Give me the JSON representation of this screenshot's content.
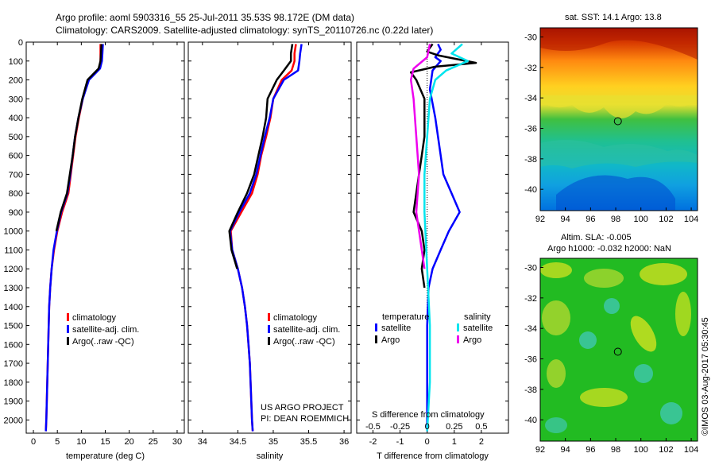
{
  "header": {
    "line1": "Argo profile: aoml 5903316_55 25-Jul-2011 35.53S 98.172E (DM data)",
    "line2": "Climatology: CARS2009. Satellite-adjusted climatology: synTS_20110726.nc (0.22d later)"
  },
  "colors": {
    "climatology": "#ff0000",
    "satellite": "#0000ff",
    "argo": "#000000",
    "sal_sat": "#00e5ee",
    "sal_argo": "#ee00ee"
  },
  "chart_data": [
    {
      "type": "line",
      "id": "temperature",
      "xlabel": "temperature (deg C)",
      "xlim": [
        -1.5,
        31.5
      ],
      "ylim": [
        2070,
        0
      ],
      "xticks": [
        0,
        5,
        10,
        15,
        20,
        25,
        30
      ],
      "yticks": [
        0,
        100,
        200,
        300,
        400,
        500,
        600,
        700,
        800,
        900,
        1000,
        1100,
        1200,
        1300,
        1400,
        1500,
        1600,
        1700,
        1800,
        1900,
        2000
      ],
      "legend": [
        "climatology",
        "satellite-adj. clim.",
        "Argo(..raw -QC)"
      ],
      "series": [
        {
          "name": "climatology",
          "color": "#ff0000",
          "points": [
            [
              14.0,
              10
            ],
            [
              14.0,
              60
            ],
            [
              14.0,
              100
            ],
            [
              13.7,
              140
            ],
            [
              11.5,
              200
            ],
            [
              10.3,
              300
            ],
            [
              9.5,
              400
            ],
            [
              8.8,
              500
            ],
            [
              8.3,
              600
            ],
            [
              7.8,
              700
            ],
            [
              7.3,
              800
            ],
            [
              6.0,
              900
            ],
            [
              5.0,
              1000
            ],
            [
              4.3,
              1100
            ],
            [
              3.8,
              1200
            ],
            [
              3.5,
              1300
            ],
            [
              3.3,
              1400
            ],
            [
              3.2,
              1500
            ],
            [
              3.1,
              1600
            ],
            [
              3.0,
              1700
            ],
            [
              2.9,
              1800
            ],
            [
              2.8,
              1900
            ],
            [
              2.7,
              2000
            ],
            [
              2.6,
              2060
            ]
          ]
        },
        {
          "name": "satellite-adj. clim.",
          "color": "#0000ff",
          "points": [
            [
              14.5,
              10
            ],
            [
              14.4,
              60
            ],
            [
              14.3,
              100
            ],
            [
              13.9,
              140
            ],
            [
              11.6,
              200
            ],
            [
              10.3,
              300
            ],
            [
              9.4,
              400
            ],
            [
              8.7,
              500
            ],
            [
              8.2,
              600
            ],
            [
              7.7,
              700
            ],
            [
              7.1,
              800
            ],
            [
              5.8,
              900
            ],
            [
              4.9,
              1000
            ],
            [
              4.2,
              1100
            ],
            [
              3.8,
              1200
            ],
            [
              3.5,
              1300
            ],
            [
              3.3,
              1400
            ],
            [
              3.2,
              1500
            ],
            [
              3.1,
              1600
            ],
            [
              3.0,
              1700
            ],
            [
              2.9,
              1800
            ],
            [
              2.8,
              1900
            ],
            [
              2.7,
              2000
            ],
            [
              2.6,
              2060
            ]
          ]
        },
        {
          "name": "Argo(..raw -QC)",
          "color": "#000000",
          "points": [
            [
              14.2,
              10
            ],
            [
              14.1,
              60
            ],
            [
              14.0,
              100
            ],
            [
              13.6,
              140
            ],
            [
              11.3,
              200
            ],
            [
              10.2,
              300
            ],
            [
              9.4,
              400
            ],
            [
              8.7,
              500
            ],
            [
              8.2,
              600
            ],
            [
              7.6,
              700
            ],
            [
              7.0,
              800
            ],
            [
              5.7,
              900
            ],
            [
              4.8,
              1000
            ]
          ]
        }
      ]
    },
    {
      "type": "line",
      "id": "salinity",
      "xlabel": "salinity",
      "xlim": [
        33.8,
        36.1
      ],
      "ylim": [
        2070,
        0
      ],
      "xticks": [
        34,
        34.5,
        35,
        35.5,
        36
      ],
      "legend": [
        "climatology",
        "satellite-adj. clim.",
        "Argo(..raw -QC)"
      ],
      "annotation": [
        "US ARGO PROJECT",
        "PI: DEAN ROEMMICH"
      ],
      "series": [
        {
          "name": "climatology",
          "color": "#ff0000",
          "points": [
            [
              35.32,
              10
            ],
            [
              35.3,
              60
            ],
            [
              35.3,
              100
            ],
            [
              35.26,
              150
            ],
            [
              35.12,
              200
            ],
            [
              35.0,
              300
            ],
            [
              34.96,
              400
            ],
            [
              34.9,
              500
            ],
            [
              34.83,
              600
            ],
            [
              34.78,
              700
            ],
            [
              34.7,
              800
            ],
            [
              34.55,
              900
            ],
            [
              34.4,
              1000
            ],
            [
              34.42,
              1100
            ],
            [
              34.5,
              1200
            ],
            [
              34.56,
              1300
            ],
            [
              34.6,
              1400
            ],
            [
              34.63,
              1500
            ],
            [
              34.65,
              1600
            ],
            [
              34.67,
              1700
            ],
            [
              34.68,
              1800
            ],
            [
              34.69,
              1900
            ],
            [
              34.7,
              2000
            ],
            [
              34.71,
              2060
            ]
          ]
        },
        {
          "name": "satellite-adj. clim.",
          "color": "#0000ff",
          "points": [
            [
              35.4,
              10
            ],
            [
              35.38,
              60
            ],
            [
              35.37,
              100
            ],
            [
              35.35,
              150
            ],
            [
              35.15,
              200
            ],
            [
              35.0,
              300
            ],
            [
              34.95,
              400
            ],
            [
              34.88,
              500
            ],
            [
              34.82,
              600
            ],
            [
              34.76,
              700
            ],
            [
              34.67,
              800
            ],
            [
              34.52,
              900
            ],
            [
              34.39,
              1000
            ],
            [
              34.42,
              1100
            ],
            [
              34.5,
              1200
            ],
            [
              34.56,
              1300
            ],
            [
              34.6,
              1400
            ],
            [
              34.63,
              1500
            ],
            [
              34.65,
              1600
            ],
            [
              34.67,
              1700
            ],
            [
              34.68,
              1800
            ],
            [
              34.69,
              1900
            ],
            [
              34.7,
              2000
            ],
            [
              34.71,
              2060
            ]
          ]
        },
        {
          "name": "Argo(..raw -QC)",
          "color": "#000000",
          "points": [
            [
              35.27,
              10
            ],
            [
              35.25,
              60
            ],
            [
              35.25,
              100
            ],
            [
              35.15,
              150
            ],
            [
              35.05,
              200
            ],
            [
              34.92,
              300
            ],
            [
              34.9,
              400
            ],
            [
              34.85,
              500
            ],
            [
              34.79,
              600
            ],
            [
              34.73,
              700
            ],
            [
              34.63,
              800
            ],
            [
              34.5,
              900
            ],
            [
              34.38,
              1000
            ],
            [
              34.41,
              1100
            ],
            [
              34.49,
              1200
            ]
          ]
        }
      ]
    },
    {
      "type": "line",
      "id": "difference",
      "xlabel": "T difference from climatology",
      "xlabel_top": "S difference from climatology",
      "xlim": [
        -2.6,
        3.0
      ],
      "ylim": [
        2070,
        0
      ],
      "xticks": [
        -2,
        -1,
        0,
        1,
        2
      ],
      "sticks_labels": [
        "-0.5",
        "-0.25",
        "0",
        "0.25",
        "0.5"
      ],
      "sticks_pos": [
        -2,
        -1,
        0,
        1,
        2
      ],
      "legend_headers": [
        "temperature",
        "salinity"
      ],
      "legend": [
        "satellite",
        "Argo",
        "satellite",
        "Argo"
      ],
      "series": [
        {
          "name": "temperature satellite",
          "color": "#0000ff",
          "points": [
            [
              0.4,
              10
            ],
            [
              0.5,
              40
            ],
            [
              0.3,
              80
            ],
            [
              0.5,
              100
            ],
            [
              0.2,
              150
            ],
            [
              0.1,
              250
            ],
            [
              0.3,
              400
            ],
            [
              0.4,
              500
            ],
            [
              0.5,
              600
            ],
            [
              0.6,
              700
            ],
            [
              0.9,
              800
            ],
            [
              1.2,
              900
            ],
            [
              0.8,
              1000
            ],
            [
              0.5,
              1100
            ],
            [
              0.2,
              1200
            ],
            [
              0.05,
              1300
            ],
            [
              0.0,
              1500
            ],
            [
              0.0,
              2060
            ]
          ]
        },
        {
          "name": "temperature Argo",
          "color": "#000000",
          "points": [
            [
              0.2,
              10
            ],
            [
              0.0,
              50
            ],
            [
              0.4,
              70
            ],
            [
              1.8,
              110
            ],
            [
              0.3,
              130
            ],
            [
              -0.6,
              160
            ],
            [
              -0.4,
              200
            ],
            [
              -0.1,
              300
            ],
            [
              -0.1,
              400
            ],
            [
              -0.1,
              500
            ],
            [
              -0.2,
              600
            ],
            [
              -0.3,
              700
            ],
            [
              -0.4,
              800
            ],
            [
              -0.5,
              900
            ],
            [
              -0.2,
              1000
            ],
            [
              -0.1,
              1100
            ],
            [
              -0.2,
              1200
            ],
            [
              -0.1,
              1300
            ]
          ]
        },
        {
          "name": "salinity satellite",
          "color": "#00e5ee",
          "points": [
            [
              1.3,
              10
            ],
            [
              0.9,
              60
            ],
            [
              1.5,
              100
            ],
            [
              0.7,
              150
            ],
            [
              0.3,
              200
            ],
            [
              0.1,
              300
            ],
            [
              0.0,
              500
            ],
            [
              -0.1,
              700
            ],
            [
              -0.1,
              900
            ],
            [
              0.0,
              1200
            ],
            [
              0.1,
              1500
            ],
            [
              0.1,
              1800
            ],
            [
              0.0,
              2060
            ]
          ]
        },
        {
          "name": "salinity Argo",
          "color": "#ee00ee",
          "points": [
            [
              0.1,
              10
            ],
            [
              0.0,
              80
            ],
            [
              -0.5,
              140
            ],
            [
              -0.6,
              200
            ],
            [
              -0.5,
              300
            ],
            [
              -0.4,
              500
            ],
            [
              -0.3,
              700
            ],
            [
              -0.4,
              900
            ],
            [
              -0.2,
              1100
            ],
            [
              -0.1,
              1200
            ]
          ]
        }
      ]
    },
    {
      "type": "heatmap",
      "id": "sst",
      "title": "sat. SST: 14.1  Argo: 13.8",
      "xlim": [
        92,
        104.5
      ],
      "ylim": [
        -41.4,
        -29.4
      ],
      "xticks": [
        92,
        94,
        96,
        98,
        100,
        102,
        104
      ],
      "yticks": [
        -30,
        -32,
        -34,
        -36,
        -38,
        -40
      ],
      "marker": [
        98.17,
        -35.53
      ]
    },
    {
      "type": "heatmap",
      "id": "sla",
      "title_line1": "Altim. SLA: -0.005",
      "title_line2": "Argo h1000: -0.032 h2000: NaN",
      "xlim": [
        92,
        104.5
      ],
      "ylim": [
        -41.4,
        -29.4
      ],
      "xticks": [
        92,
        94,
        96,
        98,
        100,
        102,
        104
      ],
      "yticks": [
        -30,
        -32,
        -34,
        -36,
        -38,
        -40
      ],
      "marker": [
        98.17,
        -35.53
      ]
    }
  ],
  "footer": {
    "credit": "©IMOS 03-Aug-2017 05:30:45"
  }
}
